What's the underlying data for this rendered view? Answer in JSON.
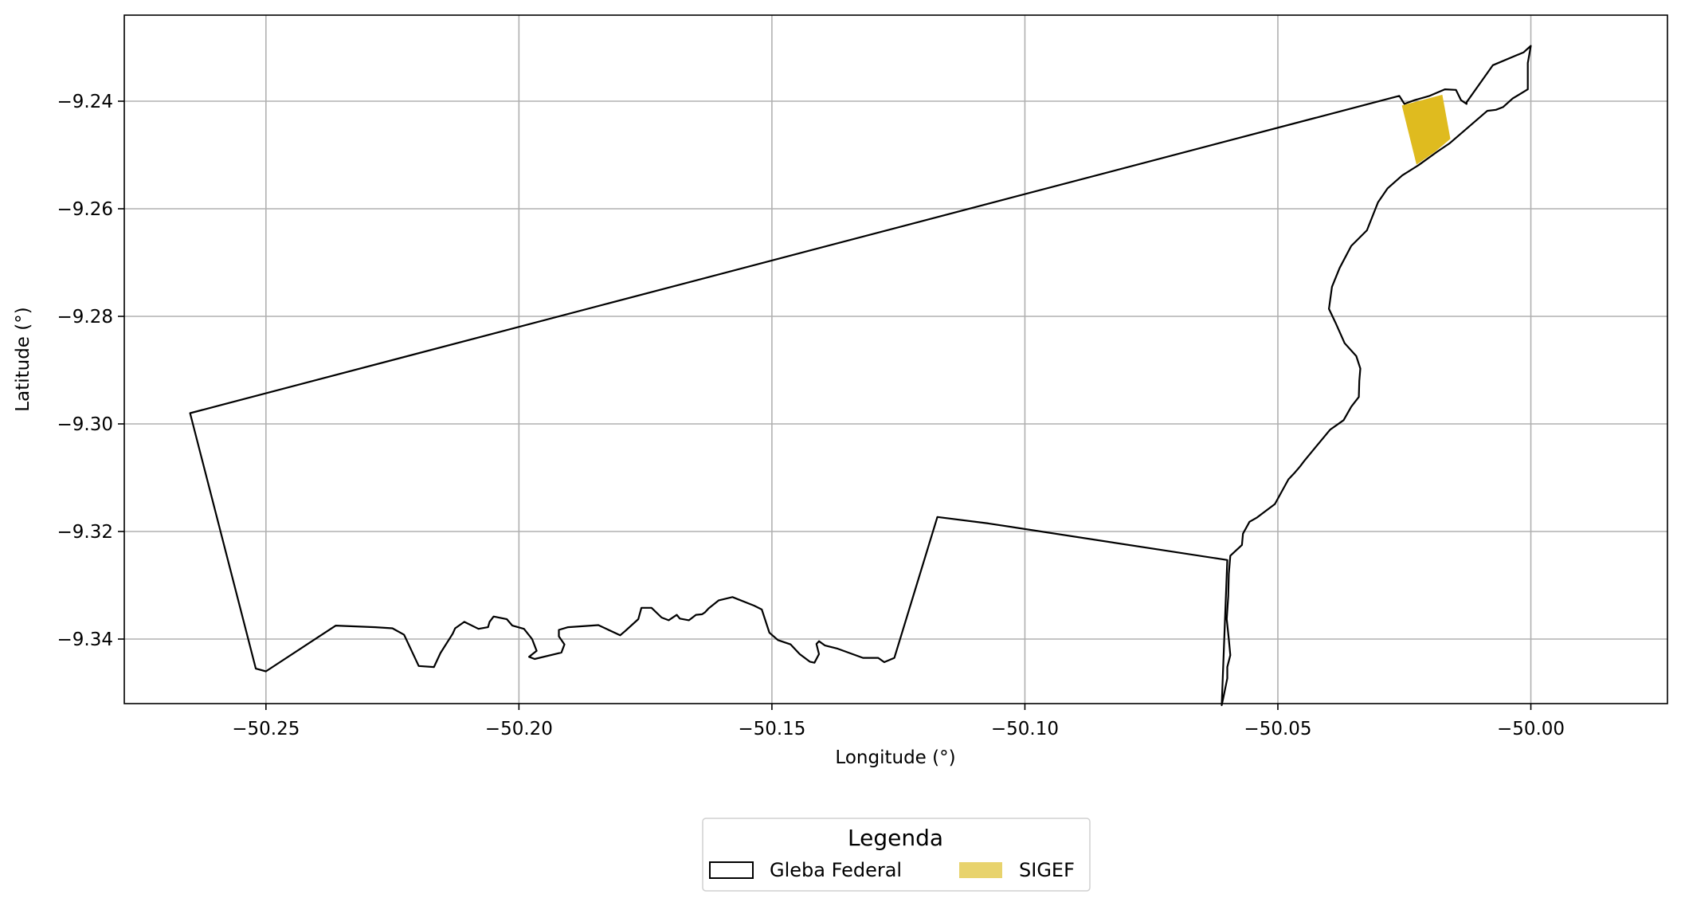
{
  "chart_data": {
    "type": "map",
    "xlabel": "Longitude (°)",
    "ylabel": "Latitude (°)",
    "xlim": [
      -50.278,
      -49.973
    ],
    "ylim": [
      -9.352,
      -9.224
    ],
    "x_ticks": [
      -50.25,
      -50.2,
      -50.15,
      -50.1,
      -50.05,
      -50.0
    ],
    "x_tick_labels": [
      "−50.25",
      "−50.20",
      "−50.15",
      "−50.10",
      "−50.05",
      "−50.00"
    ],
    "y_ticks": [
      -9.24,
      -9.26,
      -9.28,
      -9.3,
      -9.32,
      -9.34
    ],
    "y_tick_labels": [
      "−9.24",
      "−9.26",
      "−9.28",
      "−9.30",
      "−9.32",
      "−9.34"
    ],
    "grid": true,
    "legend": {
      "title": "Legenda",
      "placement": "bottom-center, below axes",
      "entries": [
        "Gleba Federal",
        "SIGEF"
      ]
    },
    "colors": {
      "gleba_edge": "#000000",
      "sigef_fill": "#dfbb1f",
      "sigef_legend_fill": "#e8d36d",
      "grid": "#b0b0b0"
    },
    "series": [
      {
        "name": "Gleba Federal",
        "kind": "polygon-outline",
        "points": [
          [
            -50.265,
            -9.298
          ],
          [
            -50.026,
            -9.239
          ],
          [
            -50.025,
            -9.2405
          ],
          [
            -50.023,
            -9.2398
          ],
          [
            -50.02,
            -9.239
          ],
          [
            -50.017,
            -9.2378
          ],
          [
            -50.0148,
            -9.2379
          ],
          [
            -50.0138,
            -9.2398
          ],
          [
            -50.0127,
            -9.2405
          ],
          [
            -50.0127,
            -9.2402
          ],
          [
            -50.0075,
            -9.2333
          ],
          [
            -50.0014,
            -9.2309
          ],
          [
            -50.0,
            -9.2297
          ],
          [
            -50.0006,
            -9.2329
          ],
          [
            -50.0006,
            -9.2378
          ],
          [
            -50.0036,
            -9.2395
          ],
          [
            -50.0055,
            -9.2411
          ],
          [
            -50.0069,
            -9.2416
          ],
          [
            -50.0086,
            -9.2418
          ],
          [
            -50.016,
            -9.2478
          ],
          [
            -50.0185,
            -9.2494
          ],
          [
            -50.0222,
            -9.2519
          ],
          [
            -50.0254,
            -9.2538
          ],
          [
            -50.0283,
            -9.2562
          ],
          [
            -50.0302,
            -9.2588
          ],
          [
            -50.0324,
            -9.264
          ],
          [
            -50.0355,
            -9.2669
          ],
          [
            -50.0378,
            -9.271
          ],
          [
            -50.0393,
            -9.2745
          ],
          [
            -50.0399,
            -9.2786
          ],
          [
            -50.0386,
            -9.2812
          ],
          [
            -50.0368,
            -9.285
          ],
          [
            -50.0345,
            -9.2874
          ],
          [
            -50.0337,
            -9.2897
          ],
          [
            -50.0339,
            -9.292
          ],
          [
            -50.034,
            -9.295
          ],
          [
            -50.0355,
            -9.2968
          ],
          [
            -50.037,
            -9.2993
          ],
          [
            -50.0397,
            -9.3011
          ],
          [
            -50.0427,
            -9.3045
          ],
          [
            -50.0448,
            -9.3069
          ],
          [
            -50.0456,
            -9.3079
          ],
          [
            -50.0466,
            -9.309
          ],
          [
            -50.0479,
            -9.3103
          ],
          [
            -50.0506,
            -9.3149
          ],
          [
            -50.0541,
            -9.3174
          ],
          [
            -50.0556,
            -9.3182
          ],
          [
            -50.0569,
            -9.3204
          ],
          [
            -50.0571,
            -9.3225
          ],
          [
            -50.0594,
            -9.3245
          ],
          [
            -50.0597,
            -9.3279
          ],
          [
            -50.0598,
            -9.332
          ],
          [
            -50.0601,
            -9.3363
          ],
          [
            -50.0597,
            -9.34
          ],
          [
            -50.0594,
            -9.343
          ],
          [
            -50.06,
            -9.3452
          ],
          [
            -50.06,
            -9.3473
          ],
          [
            -50.0608,
            -9.351
          ],
          [
            -50.0611,
            -9.3523
          ],
          [
            -50.06,
            -9.3253
          ],
          [
            -50.1072,
            -9.3185
          ],
          [
            -50.1173,
            -9.3173
          ],
          [
            -50.1258,
            -9.3435
          ],
          [
            -50.1278,
            -9.3443
          ],
          [
            -50.129,
            -9.3435
          ],
          [
            -50.132,
            -9.3435
          ],
          [
            -50.137,
            -9.3418
          ],
          [
            -50.1395,
            -9.3412
          ],
          [
            -50.1407,
            -9.3404
          ],
          [
            -50.1412,
            -9.3409
          ],
          [
            -50.1407,
            -9.3428
          ],
          [
            -50.1416,
            -9.3444
          ],
          [
            -50.1425,
            -9.3442
          ],
          [
            -50.1445,
            -9.3428
          ],
          [
            -50.1463,
            -9.341
          ],
          [
            -50.1488,
            -9.3402
          ],
          [
            -50.1505,
            -9.3388
          ],
          [
            -50.152,
            -9.3345
          ],
          [
            -50.1535,
            -9.3338
          ],
          [
            -50.1578,
            -9.3322
          ],
          [
            -50.1605,
            -9.3328
          ],
          [
            -50.1625,
            -9.3343
          ],
          [
            -50.1632,
            -9.335
          ],
          [
            -50.1638,
            -9.3354
          ],
          [
            -50.165,
            -9.3355
          ],
          [
            -50.1664,
            -9.3365
          ],
          [
            -50.1682,
            -9.3362
          ],
          [
            -50.1688,
            -9.3355
          ],
          [
            -50.1704,
            -9.3365
          ],
          [
            -50.1718,
            -9.336
          ],
          [
            -50.1738,
            -9.3342
          ],
          [
            -50.1758,
            -9.3342
          ],
          [
            -50.1764,
            -9.3363
          ],
          [
            -50.179,
            -9.3385
          ],
          [
            -50.18,
            -9.3393
          ],
          [
            -50.1843,
            -9.3374
          ],
          [
            -50.1903,
            -9.3378
          ],
          [
            -50.1921,
            -9.3383
          ],
          [
            -50.1921,
            -9.3395
          ],
          [
            -50.191,
            -9.341
          ],
          [
            -50.1916,
            -9.3425
          ],
          [
            -50.1969,
            -9.3437
          ],
          [
            -50.198,
            -9.3433
          ],
          [
            -50.1965,
            -9.3422
          ],
          [
            -50.1974,
            -9.34
          ],
          [
            -50.199,
            -9.3381
          ],
          [
            -50.2013,
            -9.3375
          ],
          [
            -50.2024,
            -9.3363
          ],
          [
            -50.205,
            -9.3358
          ],
          [
            -50.2058,
            -9.3368
          ],
          [
            -50.2061,
            -9.3378
          ],
          [
            -50.208,
            -9.3381
          ],
          [
            -50.2108,
            -9.3368
          ],
          [
            -50.2126,
            -9.338
          ],
          [
            -50.2131,
            -9.339
          ],
          [
            -50.2155,
            -9.3426
          ],
          [
            -50.2168,
            -9.3452
          ],
          [
            -50.2198,
            -9.345
          ],
          [
            -50.2227,
            -9.3392
          ],
          [
            -50.225,
            -9.338
          ],
          [
            -50.2284,
            -9.3378
          ],
          [
            -50.2362,
            -9.3375
          ],
          [
            -50.25,
            -9.346
          ],
          [
            -50.252,
            -9.3455
          ],
          [
            -50.265,
            -9.298
          ]
        ]
      },
      {
        "name": "SIGEF",
        "kind": "polygon-fill",
        "points": [
          [
            -50.0255,
            -9.2408
          ],
          [
            -50.0175,
            -9.2388
          ],
          [
            -50.0159,
            -9.247
          ],
          [
            -50.0189,
            -9.2494
          ],
          [
            -50.0226,
            -9.2518
          ]
        ]
      }
    ]
  }
}
